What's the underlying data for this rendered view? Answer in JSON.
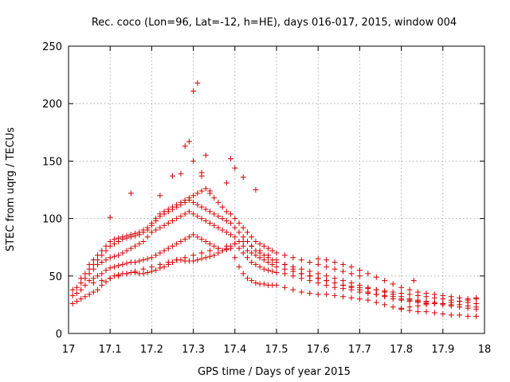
{
  "chart_data": {
    "type": "scatter",
    "title": "Rec. coco (Lon=96, Lat=-12, h=HE), days 016-017, 2015, window 004",
    "xlabel": "GPS time / Days of year 2015",
    "ylabel": "STEC from uqrg / TECUs",
    "xlim": [
      17,
      18
    ],
    "ylim": [
      0,
      250
    ],
    "xticks": [
      "17",
      "17.1",
      "17.2",
      "17.3",
      "17.4",
      "17.5",
      "17.6",
      "17.7",
      "17.8",
      "17.9",
      "18"
    ],
    "yticks": [
      "0",
      "50",
      "100",
      "150",
      "200",
      "250"
    ],
    "grid": true,
    "marker": "plus",
    "color": "#d40000",
    "series": [
      {
        "x": [
          17.01,
          17.02,
          17.03,
          17.04,
          17.05,
          17.06,
          17.07,
          17.08,
          17.09,
          17.1,
          17.11,
          17.12,
          17.13,
          17.14,
          17.15,
          17.16,
          17.17,
          17.18,
          17.19,
          17.2,
          17.21,
          17.22,
          17.23,
          17.24,
          17.25,
          17.26,
          17.27,
          17.28,
          17.29,
          17.3,
          17.31,
          17.32,
          17.33,
          17.34,
          17.35,
          17.36,
          17.37,
          17.38,
          17.39,
          17.4,
          17.41,
          17.42,
          17.43,
          17.44,
          17.45,
          17.46,
          17.47,
          17.48,
          17.49,
          17.5,
          17.52,
          17.54,
          17.56,
          17.58,
          17.6,
          17.62,
          17.64,
          17.66,
          17.68,
          17.7,
          17.72,
          17.74,
          17.76,
          17.78,
          17.8,
          17.82,
          17.84,
          17.86,
          17.88,
          17.9,
          17.92,
          17.94,
          17.96,
          17.98
        ],
        "y": [
          26,
          28,
          30,
          32,
          34,
          36,
          38,
          42,
          45,
          48,
          50,
          51,
          52,
          52,
          53,
          53,
          52,
          52,
          53,
          54,
          55,
          57,
          58,
          60,
          62,
          64,
          64,
          63,
          63,
          63,
          64,
          65,
          66,
          67,
          68,
          70,
          72,
          73,
          74,
          66,
          58,
          52,
          48,
          46,
          44,
          43,
          43,
          42,
          42,
          42,
          40,
          38,
          36,
          35,
          34,
          34,
          33,
          32,
          31,
          30,
          29,
          27,
          25,
          23,
          21,
          20,
          19,
          19,
          18,
          17,
          16,
          16,
          15,
          15
        ]
      },
      {
        "x": [
          17.01,
          17.02,
          17.03,
          17.04,
          17.05,
          17.06,
          17.07,
          17.08,
          17.09,
          17.1,
          17.11,
          17.12,
          17.13,
          17.14,
          17.15,
          17.16,
          17.17,
          17.18,
          17.19,
          17.2,
          17.21,
          17.22,
          17.23,
          17.24,
          17.25,
          17.26,
          17.27,
          17.28,
          17.29,
          17.3,
          17.31,
          17.32,
          17.33,
          17.34,
          17.35,
          17.36,
          17.37,
          17.38,
          17.39,
          17.4,
          17.41,
          17.42,
          17.43,
          17.44,
          17.45,
          17.46,
          17.47,
          17.48,
          17.49,
          17.5,
          17.52,
          17.54,
          17.56,
          17.58,
          17.6,
          17.62,
          17.64,
          17.66,
          17.68,
          17.7,
          17.72,
          17.74,
          17.76,
          17.78,
          17.8,
          17.82,
          17.84,
          17.86,
          17.88,
          17.9,
          17.92,
          17.94,
          17.96,
          17.98
        ],
        "y": [
          33,
          35,
          38,
          42,
          46,
          48,
          50,
          52,
          55,
          57,
          58,
          59,
          60,
          61,
          62,
          62,
          63,
          64,
          65,
          66,
          68,
          70,
          72,
          74,
          76,
          78,
          80,
          82,
          84,
          86,
          84,
          82,
          80,
          78,
          76,
          74,
          72,
          74,
          76,
          78,
          74,
          70,
          66,
          62,
          60,
          58,
          56,
          55,
          54,
          53,
          52,
          50,
          48,
          46,
          44,
          42,
          40,
          39,
          38,
          36,
          35,
          34,
          32,
          30,
          29,
          28,
          27,
          26,
          26,
          25,
          24,
          23,
          22,
          21
        ]
      },
      {
        "x": [
          17.01,
          17.02,
          17.03,
          17.04,
          17.05,
          17.06,
          17.07,
          17.08,
          17.09,
          17.1,
          17.11,
          17.12,
          17.13,
          17.14,
          17.15,
          17.16,
          17.17,
          17.18,
          17.19,
          17.2,
          17.21,
          17.22,
          17.23,
          17.24,
          17.25,
          17.26,
          17.27,
          17.28,
          17.29,
          17.3,
          17.31,
          17.32,
          17.33,
          17.34,
          17.35,
          17.36,
          17.37,
          17.38,
          17.39,
          17.4,
          17.41,
          17.42,
          17.43,
          17.44,
          17.45,
          17.46,
          17.47,
          17.48,
          17.49,
          17.5,
          17.52,
          17.54,
          17.56,
          17.58,
          17.6,
          17.62,
          17.64,
          17.66,
          17.68,
          17.7,
          17.72,
          17.74,
          17.76,
          17.78,
          17.8,
          17.82,
          17.84,
          17.86,
          17.88,
          17.9,
          17.92,
          17.94,
          17.96,
          17.98
        ],
        "y": [
          38,
          40,
          44,
          48,
          52,
          56,
          60,
          62,
          64,
          66,
          67,
          68,
          70,
          72,
          74,
          76,
          78,
          80,
          84,
          88,
          90,
          92,
          94,
          96,
          98,
          100,
          102,
          104,
          106,
          104,
          102,
          100,
          98,
          96,
          94,
          92,
          90,
          88,
          86,
          84,
          80,
          76,
          72,
          70,
          68,
          66,
          64,
          62,
          60,
          58,
          56,
          54,
          52,
          50,
          48,
          46,
          44,
          42,
          40,
          38,
          36,
          34,
          33,
          32,
          30,
          29,
          28,
          27,
          26,
          26,
          25,
          25,
          24,
          23
        ]
      },
      {
        "x": [
          17.03,
          17.04,
          17.05,
          17.06,
          17.07,
          17.08,
          17.09,
          17.1,
          17.11,
          17.12,
          17.13,
          17.14,
          17.15,
          17.16,
          17.17,
          17.18,
          17.19,
          17.2,
          17.21,
          17.22,
          17.23,
          17.24,
          17.25,
          17.26,
          17.27,
          17.28,
          17.29,
          17.3,
          17.31,
          17.32,
          17.33,
          17.34,
          17.35,
          17.36,
          17.37,
          17.38,
          17.39,
          17.4,
          17.41,
          17.42,
          17.43,
          17.44,
          17.45,
          17.46,
          17.47,
          17.48,
          17.49,
          17.5,
          17.52,
          17.54,
          17.56,
          17.58,
          17.6,
          17.62,
          17.64,
          17.66,
          17.68,
          17.7,
          17.72,
          17.74,
          17.76,
          17.78,
          17.8,
          17.82,
          17.84,
          17.86,
          17.88,
          17.9
        ],
        "y": [
          48,
          52,
          56,
          60,
          64,
          68,
          72,
          76,
          78,
          80,
          82,
          83,
          84,
          85,
          86,
          88,
          90,
          94,
          98,
          102,
          104,
          106,
          108,
          110,
          112,
          114,
          116,
          114,
          112,
          110,
          108,
          106,
          104,
          102,
          100,
          98,
          96,
          92,
          88,
          84,
          80,
          76,
          72,
          70,
          68,
          66,
          64,
          62,
          60,
          58,
          56,
          54,
          52,
          50,
          48,
          46,
          44,
          42,
          40,
          38,
          36,
          34,
          32,
          30,
          29,
          28,
          27,
          26
        ]
      },
      {
        "x": [
          17.05,
          17.06,
          17.07,
          17.08,
          17.09,
          17.1,
          17.11,
          17.12,
          17.13,
          17.14,
          17.15,
          17.16,
          17.17,
          17.18,
          17.19,
          17.2,
          17.21,
          17.22,
          17.23,
          17.24,
          17.25,
          17.26,
          17.27,
          17.28,
          17.29,
          17.3,
          17.31,
          17.32,
          17.33,
          17.34,
          17.35,
          17.36,
          17.37,
          17.38,
          17.39,
          17.4,
          17.41,
          17.42,
          17.43,
          17.44,
          17.45,
          17.46,
          17.47,
          17.48,
          17.49,
          17.5,
          17.52,
          17.54,
          17.56,
          17.58,
          17.6,
          17.62,
          17.64,
          17.66,
          17.68,
          17.7
        ],
        "y": [
          60,
          64,
          68,
          72,
          76,
          80,
          82,
          83,
          84,
          85,
          86,
          87,
          88,
          90,
          92,
          96,
          100,
          104,
          106,
          108,
          110,
          112,
          114,
          116,
          118,
          120,
          122,
          124,
          126,
          122,
          118,
          114,
          110,
          106,
          104,
          100,
          96,
          92,
          88,
          84,
          80,
          78,
          76,
          74,
          72,
          70,
          68,
          66,
          64,
          62,
          60,
          58,
          56,
          54,
          52,
          50
        ]
      },
      {
        "x": [
          17.06,
          17.08,
          17.1,
          17.12,
          17.14,
          17.16,
          17.18,
          17.2,
          17.22,
          17.24,
          17.26,
          17.28,
          17.3,
          17.32,
          17.34,
          17.36,
          17.38,
          17.4,
          17.42,
          17.44,
          17.46,
          17.48,
          17.5,
          17.52,
          17.54,
          17.56,
          17.58,
          17.6,
          17.62,
          17.64,
          17.66,
          17.68,
          17.7,
          17.72,
          17.74,
          17.76,
          17.78,
          17.8,
          17.82,
          17.84,
          17.86,
          17.88,
          17.9,
          17.92,
          17.94,
          17.96,
          17.98
        ],
        "y": [
          44,
          46,
          48,
          50,
          52,
          54,
          56,
          58,
          60,
          62,
          64,
          66,
          68,
          70,
          72,
          74,
          76,
          78,
          80,
          76,
          72,
          68,
          64,
          60,
          56,
          52,
          50,
          48,
          46,
          44,
          42,
          41,
          40,
          39,
          38,
          37,
          36,
          35,
          34,
          33,
          32,
          31,
          30,
          29,
          28,
          27,
          26
        ]
      },
      {
        "x": [
          17.6,
          17.62,
          17.64,
          17.66,
          17.68,
          17.7,
          17.72,
          17.74,
          17.76,
          17.78,
          17.8,
          17.82,
          17.84,
          17.86,
          17.88,
          17.9,
          17.92,
          17.94,
          17.96,
          17.98
        ],
        "y": [
          65,
          64,
          62,
          60,
          58,
          55,
          52,
          49,
          46,
          43,
          40,
          38,
          36,
          35,
          34,
          33,
          32,
          31,
          30,
          30
        ]
      },
      {
        "x": [
          17.8,
          17.82,
          17.84,
          17.86,
          17.88,
          17.9,
          17.92,
          17.94,
          17.96,
          17.98
        ],
        "y": [
          22,
          23,
          24,
          25,
          26,
          26,
          27,
          28,
          29,
          31
        ]
      },
      {
        "x": [
          17.1,
          17.15,
          17.22,
          17.25,
          17.27,
          17.28,
          17.29,
          17.3,
          17.3,
          17.31,
          17.32,
          17.32,
          17.33,
          17.34,
          17.38,
          17.39,
          17.4,
          17.42,
          17.45,
          17.83
        ],
        "y": [
          101,
          122,
          120,
          137,
          139,
          163,
          167,
          150,
          211,
          218,
          140,
          137,
          155,
          124,
          131,
          152,
          144,
          136,
          125,
          46
        ]
      }
    ]
  }
}
